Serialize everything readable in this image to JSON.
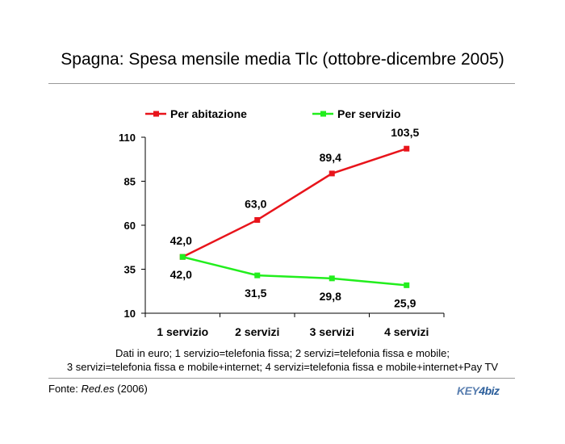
{
  "title": "Spagna: Spesa mensile media Tlc (ottobre-dicembre 2005)",
  "note_line1": "Dati in euro; 1 servizio=telefonia fissa; 2 servizi=telefonia fissa e mobile;",
  "note_line2": "3 servizi=telefonia fissa e mobile+internet; 4 servizi=telefonia fissa e mobile+internet+Pay TV",
  "source_prefix": "Fonte: ",
  "source_name": "Red.es",
  "source_suffix": " (2006)",
  "logo_text_a": "KEY",
  "logo_text_b": "4biz",
  "chart_data": {
    "type": "line",
    "categories": [
      "1 servizio",
      "2 servizi",
      "3 servizi",
      "4 servizi"
    ],
    "series": [
      {
        "name": "Per abitazione",
        "color": "#e8141b",
        "values": [
          42.0,
          63.0,
          89.4,
          103.5
        ],
        "labels": [
          "42,0",
          "63,0",
          "89,4",
          "103,5"
        ]
      },
      {
        "name": "Per servizio",
        "color": "#22ee1d",
        "values": [
          42.0,
          31.5,
          29.8,
          25.9
        ],
        "labels": [
          "42,0",
          "31,5",
          "29,8",
          "25,9"
        ]
      }
    ],
    "ylim": [
      10,
      110
    ],
    "yticks": [
      10,
      35,
      60,
      85,
      110
    ],
    "ytick_labels": [
      "10",
      "35",
      "60",
      "85",
      "110"
    ],
    "grid": false,
    "legend": "top"
  }
}
